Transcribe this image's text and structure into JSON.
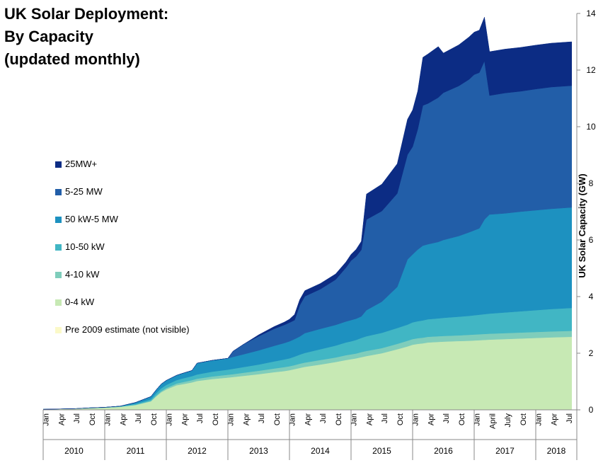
{
  "title_lines": [
    "UK Solar Deployment:",
    "By Capacity",
    "(updated monthly)"
  ],
  "colors": {
    "pre2009": "#fbf9c8",
    "0-4kW": "#c7e9b4",
    "4-10kW": "#7fcdbb",
    "10-50kW": "#41b6c4",
    "50kW-5MW": "#1d91c0",
    "5-25MW": "#225ea8",
    "25MW+": "#0c2c84"
  },
  "chart_data": {
    "type": "area",
    "stacked": true,
    "title": "UK Solar Deployment: By Capacity (updated monthly)",
    "xlabel": "",
    "ylabel": "UK Solar Capacity (GW)",
    "ylim": [
      0,
      14
    ],
    "yticks": [
      0,
      2,
      4,
      6,
      8,
      10,
      12,
      14
    ],
    "y_axis_side": "right",
    "legend_position": "left",
    "x_start": "2010-01",
    "x_end": "2018-08",
    "month_tick_labels": [
      {
        "year": 2010,
        "labels": [
          "Jan",
          "Apr",
          "Jul",
          "Oct"
        ]
      },
      {
        "year": 2011,
        "labels": [
          "Jan",
          "Apr",
          "Jul",
          "Oct"
        ]
      },
      {
        "year": 2012,
        "labels": [
          "Jan",
          "Apr",
          "Jul",
          "Oct"
        ]
      },
      {
        "year": 2013,
        "labels": [
          "Jan",
          "Apr",
          "Jul",
          "Oct"
        ]
      },
      {
        "year": 2014,
        "labels": [
          "Jan",
          "Apr",
          "Jul",
          "Oct"
        ]
      },
      {
        "year": 2015,
        "labels": [
          "Jan",
          "Apr",
          "Jul",
          "Oct"
        ]
      },
      {
        "year": 2016,
        "labels": [
          "Jan",
          "Apr",
          "Jul",
          "Oct"
        ]
      },
      {
        "year": 2017,
        "labels": [
          "Jan",
          "April",
          "July",
          "Oct"
        ]
      },
      {
        "year": 2018,
        "labels": [
          "Jan",
          "Apr",
          "Jul"
        ]
      }
    ],
    "years": [
      "2010",
      "2011",
      "2012",
      "2013",
      "2014",
      "2015",
      "2016",
      "2017",
      "2018"
    ],
    "legend": [
      "25MW+",
      "5-25 MW",
      "50 kW-5 MW",
      "10-50 kW",
      "4-10 kW",
      "0-4 kW",
      "Pre 2009 estimate (not visible)"
    ],
    "x": [
      "2010-01",
      "2010-04",
      "2010-07",
      "2010-10",
      "2011-01",
      "2011-04",
      "2011-07",
      "2011-10",
      "2011-11",
      "2011-12",
      "2012-01",
      "2012-03",
      "2012-04",
      "2012-06",
      "2012-07",
      "2012-10",
      "2013-01",
      "2013-02",
      "2013-04",
      "2013-07",
      "2013-10",
      "2013-12",
      "2014-01",
      "2014-02",
      "2014-03",
      "2014-04",
      "2014-07",
      "2014-10",
      "2014-12",
      "2015-01",
      "2015-02",
      "2015-03",
      "2015-04",
      "2015-07",
      "2015-10",
      "2015-12",
      "2016-01",
      "2016-02",
      "2016-03",
      "2016-04",
      "2016-06",
      "2016-07",
      "2016-10",
      "2016-12",
      "2017-01",
      "2017-02",
      "2017-03",
      "2017-04",
      "2017-07",
      "2017-10",
      "2018-01",
      "2018-04",
      "2018-08"
    ],
    "series": [
      {
        "name": "Pre 2009 estimate (not visible)",
        "key": "pre2009",
        "values": [
          0.02,
          0.02,
          0.02,
          0.02,
          0.02,
          0.02,
          0.02,
          0.02,
          0.02,
          0.02,
          0.02,
          0.02,
          0.02,
          0.02,
          0.02,
          0.02,
          0.02,
          0.02,
          0.02,
          0.02,
          0.02,
          0.02,
          0.02,
          0.02,
          0.02,
          0.02,
          0.02,
          0.02,
          0.02,
          0.02,
          0.02,
          0.02,
          0.02,
          0.02,
          0.02,
          0.02,
          0.02,
          0.02,
          0.02,
          0.02,
          0.02,
          0.02,
          0.02,
          0.02,
          0.02,
          0.02,
          0.02,
          0.02,
          0.02,
          0.02,
          0.02,
          0.02,
          0.02
        ]
      },
      {
        "name": "0-4 kW",
        "key": "0-4kW",
        "values": [
          0.0,
          0.01,
          0.02,
          0.04,
          0.06,
          0.09,
          0.15,
          0.28,
          0.45,
          0.6,
          0.7,
          0.85,
          0.88,
          0.95,
          1.0,
          1.07,
          1.12,
          1.14,
          1.18,
          1.24,
          1.31,
          1.35,
          1.38,
          1.42,
          1.46,
          1.5,
          1.58,
          1.67,
          1.74,
          1.77,
          1.8,
          1.84,
          1.88,
          1.98,
          2.12,
          2.22,
          2.28,
          2.31,
          2.33,
          2.36,
          2.38,
          2.39,
          2.41,
          2.42,
          2.43,
          2.44,
          2.45,
          2.46,
          2.48,
          2.5,
          2.52,
          2.54,
          2.56
        ]
      },
      {
        "name": "4-10 kW",
        "key": "4-10kW",
        "values": [
          0.0,
          0.0,
          0.0,
          0.0,
          0.0,
          0.0,
          0.01,
          0.02,
          0.03,
          0.04,
          0.05,
          0.06,
          0.07,
          0.08,
          0.08,
          0.09,
          0.1,
          0.1,
          0.11,
          0.12,
          0.13,
          0.14,
          0.14,
          0.14,
          0.15,
          0.15,
          0.16,
          0.16,
          0.17,
          0.17,
          0.17,
          0.18,
          0.18,
          0.18,
          0.19,
          0.2,
          0.2,
          0.2,
          0.2,
          0.2,
          0.2,
          0.2,
          0.2,
          0.21,
          0.21,
          0.21,
          0.21,
          0.21,
          0.21,
          0.21,
          0.21,
          0.21,
          0.21
        ]
      },
      {
        "name": "10-50 kW",
        "key": "10-50kW",
        "values": [
          0.0,
          0.0,
          0.0,
          0.01,
          0.01,
          0.02,
          0.03,
          0.05,
          0.08,
          0.1,
          0.11,
          0.12,
          0.13,
          0.14,
          0.15,
          0.17,
          0.18,
          0.19,
          0.2,
          0.22,
          0.25,
          0.27,
          0.28,
          0.3,
          0.32,
          0.34,
          0.38,
          0.42,
          0.45,
          0.46,
          0.48,
          0.5,
          0.52,
          0.54,
          0.56,
          0.57,
          0.59,
          0.6,
          0.61,
          0.62,
          0.63,
          0.64,
          0.66,
          0.67,
          0.68,
          0.69,
          0.7,
          0.71,
          0.73,
          0.75,
          0.77,
          0.79,
          0.81
        ]
      },
      {
        "name": "50 kW-5 MW",
        "key": "50kW-5MW",
        "values": [
          0.0,
          0.0,
          0.0,
          0.0,
          0.0,
          0.0,
          0.05,
          0.1,
          0.12,
          0.15,
          0.16,
          0.17,
          0.18,
          0.2,
          0.4,
          0.4,
          0.4,
          0.42,
          0.45,
          0.5,
          0.55,
          0.58,
          0.6,
          0.62,
          0.64,
          0.7,
          0.72,
          0.73,
          0.74,
          0.75,
          0.75,
          0.76,
          0.92,
          1.1,
          1.45,
          2.3,
          2.4,
          2.53,
          2.64,
          2.65,
          2.7,
          2.75,
          2.85,
          2.95,
          3.0,
          3.05,
          3.34,
          3.5,
          3.5,
          3.52,
          3.53,
          3.54,
          3.55
        ]
      },
      {
        "name": "5-25 MW",
        "key": "5-25MW",
        "values": [
          0.0,
          0.0,
          0.0,
          0.0,
          0.0,
          0.0,
          0.0,
          0.0,
          0.0,
          0.0,
          0.0,
          0.0,
          0.0,
          0.0,
          0.0,
          0.0,
          0.0,
          0.2,
          0.35,
          0.5,
          0.6,
          0.64,
          0.66,
          0.67,
          1.1,
          1.3,
          1.4,
          1.6,
          1.9,
          2.1,
          2.2,
          2.35,
          3.2,
          3.2,
          3.3,
          3.7,
          3.8,
          4.25,
          4.95,
          4.97,
          5.1,
          5.2,
          5.3,
          5.4,
          5.5,
          5.5,
          5.6,
          4.2,
          4.25,
          4.25,
          4.28,
          4.3,
          4.3
        ]
      },
      {
        "name": "25MW+",
        "key": "25MW+",
        "values": [
          0.0,
          0.0,
          0.0,
          0.0,
          0.0,
          0.0,
          0.0,
          0.0,
          0.0,
          0.0,
          0.0,
          0.0,
          0.0,
          0.0,
          0.0,
          0.0,
          0.0,
          0.0,
          0.0,
          0.05,
          0.08,
          0.1,
          0.12,
          0.2,
          0.2,
          0.2,
          0.2,
          0.2,
          0.2,
          0.22,
          0.25,
          0.3,
          0.9,
          0.95,
          1.05,
          1.25,
          1.3,
          1.35,
          1.7,
          1.75,
          1.8,
          1.4,
          1.45,
          1.5,
          1.5,
          1.5,
          1.55,
          1.55,
          1.55,
          1.55,
          1.55,
          1.55,
          1.55
        ]
      }
    ]
  }
}
